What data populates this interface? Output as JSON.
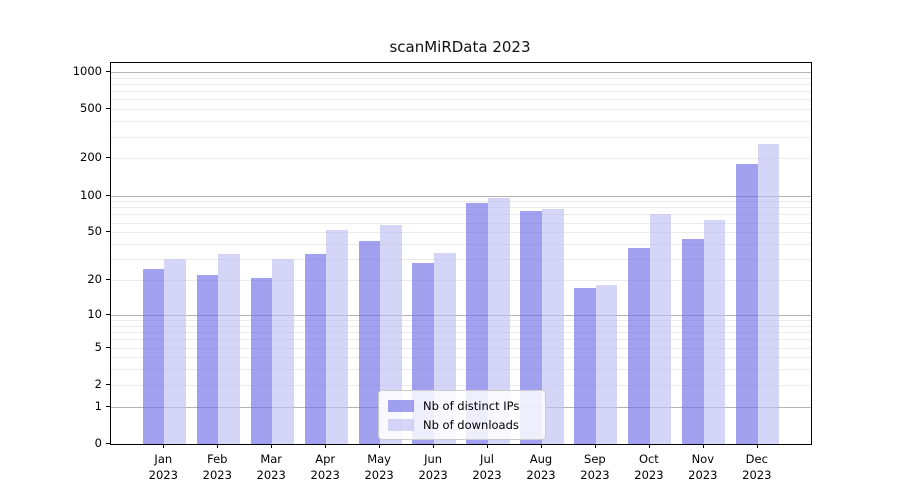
{
  "title": "scanMiRData 2023",
  "chart_data": {
    "type": "bar",
    "title": "scanMiRData 2023",
    "yscale": "log1p",
    "categories": [
      "Jan",
      "Feb",
      "Mar",
      "Apr",
      "May",
      "Jun",
      "Jul",
      "Aug",
      "Sep",
      "Oct",
      "Nov",
      "Dec"
    ],
    "year_label": "2023",
    "series": [
      {
        "name": "Nb of distinct IPs",
        "color": "rgba(110,110,232,0.65)",
        "values": [
          25,
          22,
          21,
          33,
          42,
          28,
          87,
          75,
          17,
          37,
          44,
          180
        ]
      },
      {
        "name": "Nb of downloads",
        "color": "rgba(190,190,245,0.65)",
        "values": [
          30,
          33,
          30,
          52,
          57,
          34,
          95,
          78,
          18,
          71,
          63,
          260
        ]
      }
    ],
    "yticks": [
      0,
      1,
      2,
      5,
      10,
      20,
      50,
      100,
      200,
      500,
      1000
    ],
    "ylim": [
      0,
      1180
    ],
    "xlabel": "",
    "ylabel": "",
    "grid": true,
    "legend_position": "lower center"
  }
}
